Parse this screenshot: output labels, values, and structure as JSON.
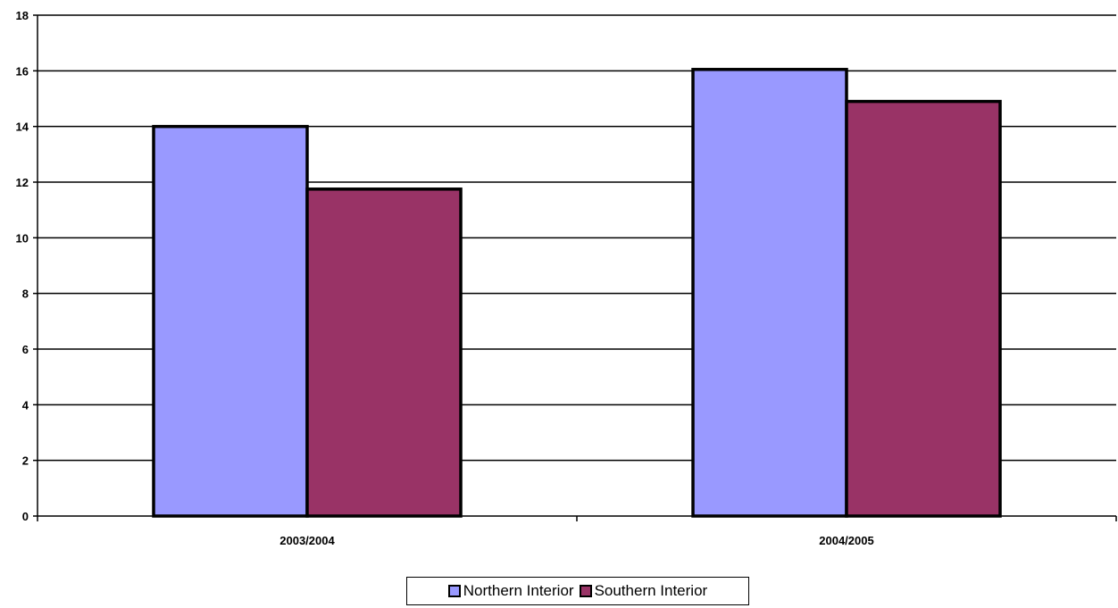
{
  "chart_data": {
    "type": "bar",
    "categories": [
      "2003/2004",
      "2004/2005"
    ],
    "series": [
      {
        "name": "Northern Interior",
        "values": [
          14,
          16.05
        ],
        "color": "#9999ff"
      },
      {
        "name": "Southern Interior",
        "values": [
          11.75,
          14.9
        ],
        "color": "#993366"
      }
    ],
    "ylim": [
      0,
      18
    ],
    "yticks": [
      0,
      2,
      4,
      6,
      8,
      10,
      12,
      14,
      16,
      18
    ],
    "grid": true,
    "legend_position": "bottom",
    "title": "",
    "xlabel": "",
    "ylabel": ""
  }
}
